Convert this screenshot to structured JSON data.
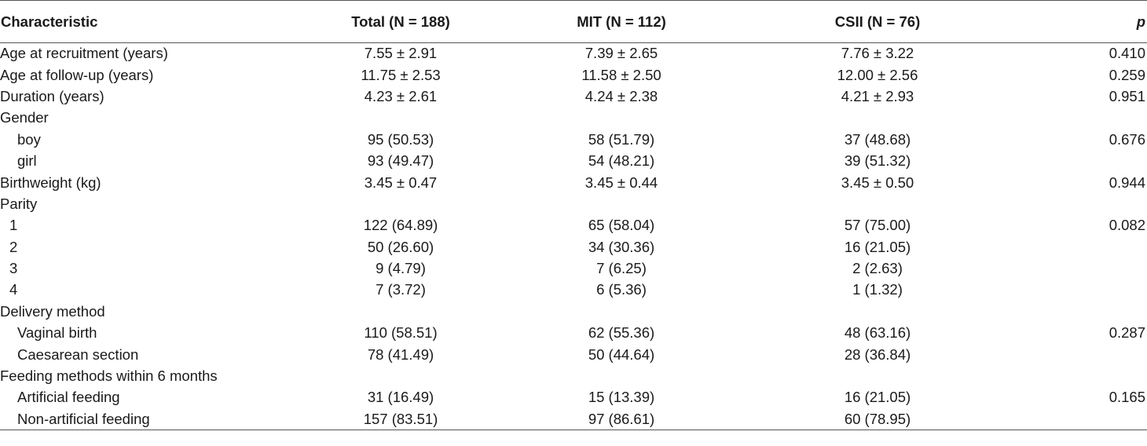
{
  "header": {
    "characteristic": "Characteristic",
    "total": "Total (N = 188)",
    "mit": "MIT (N = 112)",
    "csii": "CSII (N = 76)",
    "p": "p"
  },
  "rows": [
    {
      "label": "Age at recruitment (years)",
      "indent": 0,
      "total": "7.55 ± 2.91",
      "mit": "7.39 ± 2.65",
      "csii": "7.76 ± 3.22",
      "p": "0.410"
    },
    {
      "label": "Age at follow-up (years)",
      "indent": 0,
      "total": "11.75 ± 2.53",
      "mit": "11.58 ± 2.50",
      "csii": "12.00 ± 2.56",
      "p": "0.259"
    },
    {
      "label": "Duration (years)",
      "indent": 0,
      "total": "4.23 ± 2.61",
      "mit": "4.24 ± 2.38",
      "csii": "4.21 ± 2.93",
      "p": "0.951"
    },
    {
      "label": "Gender",
      "indent": 0,
      "total": "",
      "mit": "",
      "csii": "",
      "p": ""
    },
    {
      "label": "boy",
      "indent": 1,
      "total": "95 (50.53)",
      "mit": "58 (51.79)",
      "csii": "37 (48.68)",
      "p": "0.676"
    },
    {
      "label": "girl",
      "indent": 1,
      "total": "93 (49.47)",
      "mit": "54 (48.21)",
      "csii": "39 (51.32)",
      "p": ""
    },
    {
      "label": "Birthweight (kg)",
      "indent": 0,
      "total": "3.45 ± 0.47",
      "mit": "3.45 ± 0.44",
      "csii": "3.45 ± 0.50",
      "p": "0.944"
    },
    {
      "label": "Parity",
      "indent": 0,
      "total": "",
      "mit": "",
      "csii": "",
      "p": ""
    },
    {
      "label": "1",
      "indent": 2,
      "total": "122 (64.89)",
      "mit": "65 (58.04)",
      "csii": "57 (75.00)",
      "p": "0.082"
    },
    {
      "label": "2",
      "indent": 2,
      "total": "50 (26.60)",
      "mit": "34 (30.36)",
      "csii": "16 (21.05)",
      "p": ""
    },
    {
      "label": "3",
      "indent": 2,
      "total": "9 (4.79)",
      "mit": "7 (6.25)",
      "csii": "2 (2.63)",
      "p": ""
    },
    {
      "label": "4",
      "indent": 2,
      "total": "7 (3.72)",
      "mit": "6 (5.36)",
      "csii": "1 (1.32)",
      "p": ""
    },
    {
      "label": "Delivery method",
      "indent": 0,
      "total": "",
      "mit": "",
      "csii": "",
      "p": ""
    },
    {
      "label": "Vaginal birth",
      "indent": 1,
      "total": "110 (58.51)",
      "mit": "62 (55.36)",
      "csii": "48 (63.16)",
      "p": "0.287"
    },
    {
      "label": "Caesarean section",
      "indent": 1,
      "total": "78 (41.49)",
      "mit": "50 (44.64)",
      "csii": "28 (36.84)",
      "p": ""
    },
    {
      "label": "Feeding methods within 6 months",
      "indent": 0,
      "total": "",
      "mit": "",
      "csii": "",
      "p": ""
    },
    {
      "label": "Artificial feeding",
      "indent": 1,
      "total": "31 (16.49)",
      "mit": "15 (13.39)",
      "csii": "16 (21.05)",
      "p": "0.165"
    },
    {
      "label": "Non-artificial feeding",
      "indent": 1,
      "total": "157 (83.51)",
      "mit": "97 (86.61)",
      "csii": "60 (78.95)",
      "p": ""
    }
  ]
}
